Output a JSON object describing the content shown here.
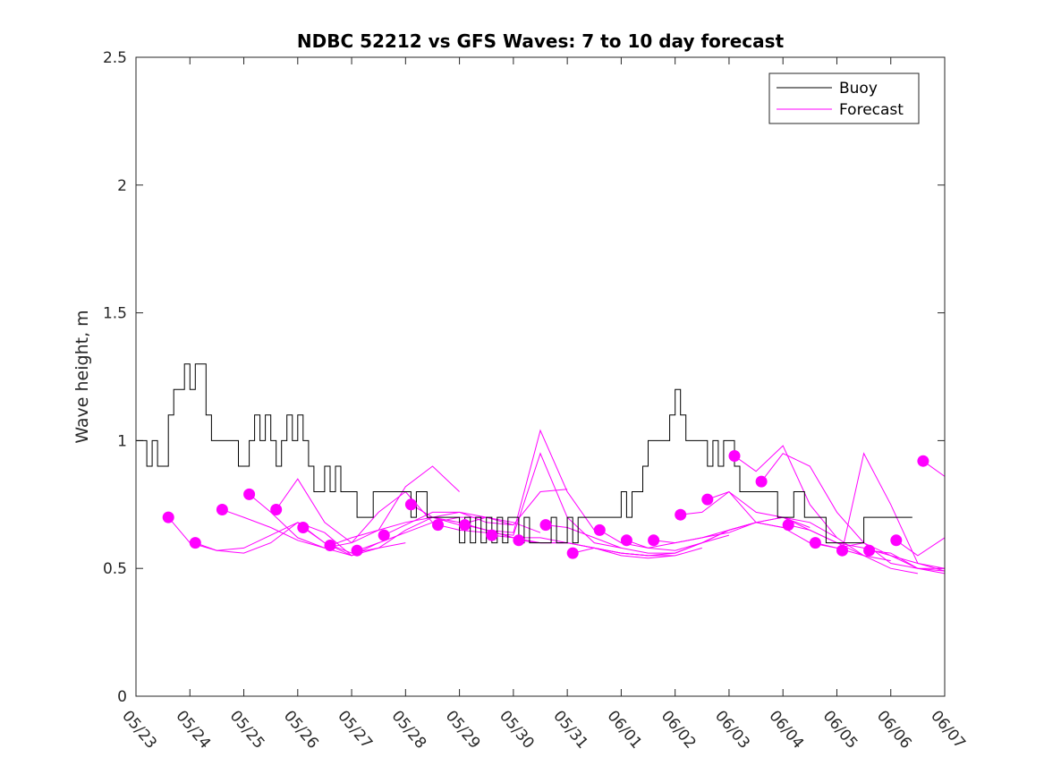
{
  "chart_data": {
    "type": "line",
    "title": "NDBC 52212 vs GFS Waves: 7 to 10 day forecast",
    "xlabel": "",
    "ylabel": "Wave height, m",
    "xlim": [
      "05/23",
      "06/07"
    ],
    "ylim": [
      0,
      2.5
    ],
    "x_tick_labels": [
      "05/23",
      "05/24",
      "05/25",
      "05/26",
      "05/27",
      "05/28",
      "05/29",
      "05/30",
      "05/31",
      "06/01",
      "06/02",
      "06/03",
      "06/04",
      "06/05",
      "06/06",
      "06/07"
    ],
    "y_tick_labels": [
      "0",
      "0.5",
      "1",
      "1.5",
      "2",
      "2.5"
    ],
    "y_ticks": [
      0,
      0.5,
      1,
      1.5,
      2,
      2.5
    ],
    "grid": false,
    "legend_position": "top-right",
    "colors": {
      "buoy": "#000000",
      "forecast": "#ff00ff"
    },
    "buoy": {
      "name": "Buoy",
      "x_days": [
        0,
        0.1,
        0.2,
        0.3,
        0.4,
        0.5,
        0.6,
        0.7,
        0.8,
        0.9,
        1.0,
        1.1,
        1.2,
        1.3,
        1.4,
        1.5,
        1.6,
        1.7,
        1.8,
        1.9,
        2.0,
        2.1,
        2.2,
        2.3,
        2.4,
        2.5,
        2.6,
        2.7,
        2.8,
        2.9,
        3.0,
        3.1,
        3.2,
        3.3,
        3.4,
        3.5,
        3.6,
        3.7,
        3.8,
        3.9,
        4.0,
        4.1,
        4.2,
        4.3,
        4.4,
        4.5,
        4.6,
        4.7,
        4.8,
        4.9,
        5.0,
        5.1,
        5.2,
        5.3,
        5.4,
        5.5,
        5.6,
        5.7,
        5.8,
        5.9,
        6.0,
        6.1,
        6.2,
        6.3,
        6.4,
        6.5,
        6.6,
        6.7,
        6.8,
        6.9,
        7.0,
        7.1,
        7.2,
        7.3,
        7.4,
        7.5,
        7.6,
        7.7,
        7.8,
        7.9,
        8.0,
        8.1,
        8.2,
        8.3,
        8.4,
        8.5,
        8.6,
        8.7,
        8.8,
        8.9,
        9.0,
        9.1,
        9.2,
        9.3,
        9.4,
        9.5,
        9.6,
        9.7,
        9.8,
        9.9,
        10.0,
        10.1,
        10.2,
        10.3,
        10.4,
        10.5,
        10.6,
        10.7,
        10.8,
        10.9,
        11.0,
        11.1,
        11.2,
        11.3,
        11.4,
        11.5,
        11.6,
        11.7,
        11.8,
        11.9,
        12.0,
        12.1,
        12.2,
        12.3,
        12.4,
        12.5,
        12.6,
        12.7,
        12.8,
        12.9,
        13.0,
        13.1,
        13.2,
        13.3,
        13.4,
        13.5,
        13.6,
        13.7,
        13.8,
        13.9,
        14.0,
        14.1,
        14.2,
        14.3
      ],
      "values": [
        1.0,
        1.0,
        0.9,
        1.0,
        0.9,
        0.9,
        1.1,
        1.2,
        1.2,
        1.3,
        1.2,
        1.3,
        1.3,
        1.1,
        1.0,
        1.0,
        1.0,
        1.0,
        1.0,
        0.9,
        0.9,
        1.0,
        1.1,
        1.0,
        1.1,
        1.0,
        0.9,
        1.0,
        1.1,
        1.0,
        1.1,
        1.0,
        0.9,
        0.8,
        0.8,
        0.9,
        0.8,
        0.9,
        0.8,
        0.8,
        0.8,
        0.7,
        0.7,
        0.7,
        0.8,
        0.8,
        0.8,
        0.8,
        0.8,
        0.8,
        0.8,
        0.7,
        0.8,
        0.8,
        0.7,
        0.7,
        0.7,
        0.7,
        0.7,
        0.7,
        0.6,
        0.7,
        0.6,
        0.7,
        0.6,
        0.7,
        0.6,
        0.7,
        0.6,
        0.7,
        0.7,
        0.6,
        0.7,
        0.6,
        0.6,
        0.6,
        0.6,
        0.7,
        0.6,
        0.6,
        0.7,
        0.6,
        0.7,
        0.7,
        0.7,
        0.7,
        0.7,
        0.7,
        0.7,
        0.7,
        0.8,
        0.7,
        0.8,
        0.8,
        0.9,
        1.0,
        1.0,
        1.0,
        1.0,
        1.1,
        1.2,
        1.1,
        1.0,
        1.0,
        1.0,
        1.0,
        0.9,
        1.0,
        0.9,
        1.0,
        1.0,
        0.9,
        0.8,
        0.8,
        0.8,
        0.8,
        0.8,
        0.8,
        0.8,
        0.7,
        0.7,
        0.7,
        0.8,
        0.8,
        0.7,
        0.7,
        0.7,
        0.7,
        0.6,
        0.6,
        0.6,
        0.6,
        0.6,
        0.6,
        0.6,
        0.7,
        0.7,
        0.7,
        0.7,
        0.7,
        0.7,
        0.7,
        0.7,
        0.7
      ]
    },
    "forecast_runs": [
      {
        "x_days": [
          0.6,
          1.0,
          1.5,
          2.0,
          2.5,
          3.0,
          3.5,
          4.0
        ],
        "values": [
          0.7,
          0.6,
          0.57,
          0.56,
          0.6,
          0.68,
          0.64,
          0.55
        ]
      },
      {
        "x_days": [
          1.1,
          1.5,
          2.0,
          2.5,
          3.0,
          3.5,
          4.0,
          4.5
        ],
        "values": [
          0.6,
          0.57,
          0.58,
          0.63,
          0.68,
          0.6,
          0.55,
          0.6
        ]
      },
      {
        "x_days": [
          1.6,
          2.0,
          2.5,
          3.0,
          3.5,
          4.0,
          4.5,
          5.0
        ],
        "values": [
          0.73,
          0.7,
          0.66,
          0.61,
          0.58,
          0.55,
          0.58,
          0.6
        ]
      },
      {
        "x_days": [
          2.1,
          2.5,
          3.0,
          3.5,
          4.0,
          4.5,
          5.0,
          5.5
        ],
        "values": [
          0.79,
          0.72,
          0.62,
          0.58,
          0.6,
          0.72,
          0.8,
          0.68
        ]
      },
      {
        "x_days": [
          2.6,
          3.0,
          3.5,
          4.0,
          4.5,
          5.0,
          5.5,
          6.0
        ],
        "values": [
          0.73,
          0.85,
          0.68,
          0.6,
          0.65,
          0.82,
          0.9,
          0.8
        ]
      },
      {
        "x_days": [
          3.1,
          3.5,
          4.0,
          4.5,
          5.0,
          5.5,
          6.0,
          6.5
        ],
        "values": [
          0.66,
          0.6,
          0.56,
          0.58,
          0.65,
          0.7,
          0.67,
          0.7
        ]
      },
      {
        "x_days": [
          3.6,
          4.0,
          4.5,
          5.0,
          5.5,
          6.0,
          6.5,
          7.0
        ],
        "values": [
          0.59,
          0.62,
          0.65,
          0.68,
          0.7,
          0.72,
          0.68,
          0.67
        ]
      },
      {
        "x_days": [
          4.1,
          4.5,
          5.0,
          5.5,
          6.0,
          6.5,
          7.0,
          7.5
        ],
        "values": [
          0.57,
          0.6,
          0.64,
          0.68,
          0.7,
          0.7,
          0.68,
          0.64
        ]
      },
      {
        "x_days": [
          4.6,
          5.0,
          5.5,
          6.0,
          6.5,
          7.0,
          7.5,
          8.0
        ],
        "values": [
          0.63,
          0.67,
          0.72,
          0.72,
          0.7,
          0.67,
          0.8,
          0.81
        ]
      },
      {
        "x_days": [
          5.1,
          5.5,
          6.0,
          6.5,
          7.0,
          7.5,
          8.0,
          8.5
        ],
        "values": [
          0.75,
          0.7,
          0.68,
          0.65,
          0.64,
          1.04,
          0.8,
          0.65
        ]
      },
      {
        "x_days": [
          5.6,
          6.0,
          6.5,
          7.0,
          7.5,
          8.0,
          8.5,
          9.0
        ],
        "values": [
          0.67,
          0.65,
          0.64,
          0.63,
          0.95,
          0.7,
          0.6,
          0.58
        ]
      },
      {
        "x_days": [
          6.1,
          6.5,
          7.0,
          7.5,
          8.0,
          8.5,
          9.0,
          9.5
        ],
        "values": [
          0.67,
          0.65,
          0.62,
          0.62,
          0.6,
          0.58,
          0.56,
          0.55
        ]
      },
      {
        "x_days": [
          6.6,
          7.0,
          7.5,
          8.0,
          8.5,
          9.0,
          9.5,
          10.0
        ],
        "values": [
          0.63,
          0.62,
          0.6,
          0.6,
          0.58,
          0.56,
          0.55,
          0.55
        ]
      },
      {
        "x_days": [
          7.1,
          7.5,
          8.0,
          8.5,
          9.0,
          9.5,
          10.0,
          10.5
        ],
        "values": [
          0.61,
          0.6,
          0.6,
          0.58,
          0.55,
          0.54,
          0.55,
          0.58
        ]
      },
      {
        "x_days": [
          7.6,
          8.0,
          8.5,
          9.0,
          9.5,
          10.0,
          10.5,
          11.0
        ],
        "values": [
          0.67,
          0.66,
          0.62,
          0.58,
          0.56,
          0.56,
          0.6,
          0.63
        ]
      },
      {
        "x_days": [
          8.1,
          8.5,
          9.0,
          9.5,
          10.0,
          10.5,
          11.0,
          11.5
        ],
        "values": [
          0.56,
          0.58,
          0.56,
          0.55,
          0.56,
          0.6,
          0.65,
          0.68
        ]
      },
      {
        "x_days": [
          8.6,
          9.0,
          9.5,
          10.0,
          10.5,
          11.0,
          11.5,
          12.0
        ],
        "values": [
          0.65,
          0.6,
          0.58,
          0.6,
          0.62,
          0.64,
          0.68,
          0.66
        ]
      },
      {
        "x_days": [
          9.1,
          9.5,
          10.0,
          10.5,
          11.0,
          11.5,
          12.0,
          12.5
        ],
        "values": [
          0.61,
          0.58,
          0.57,
          0.6,
          0.65,
          0.68,
          0.7,
          0.66
        ]
      },
      {
        "x_days": [
          9.6,
          10.0,
          10.5,
          11.0,
          11.5,
          12.0,
          12.5,
          13.0
        ],
        "values": [
          0.61,
          0.6,
          0.62,
          0.65,
          0.68,
          0.7,
          0.68,
          0.62
        ]
      },
      {
        "x_days": [
          10.1,
          10.5,
          11.0,
          11.5,
          12.0,
          12.5,
          13.0,
          13.5
        ],
        "values": [
          0.71,
          0.72,
          0.8,
          0.68,
          0.66,
          0.6,
          0.58,
          0.55
        ]
      },
      {
        "x_days": [
          10.6,
          11.0,
          11.5,
          12.0,
          12.5,
          13.0,
          13.5,
          14.0
        ],
        "values": [
          0.77,
          0.8,
          0.72,
          0.7,
          0.65,
          0.6,
          0.55,
          0.53
        ]
      },
      {
        "x_days": [
          11.1,
          11.5,
          12.0,
          12.5,
          13.0,
          13.5,
          14.0,
          14.5
        ],
        "values": [
          0.94,
          0.88,
          0.98,
          0.75,
          0.62,
          0.55,
          0.5,
          0.48
        ]
      },
      {
        "x_days": [
          11.6,
          12.0,
          12.5,
          13.0,
          13.5,
          14.0,
          14.5,
          15.0
        ],
        "values": [
          0.84,
          0.95,
          0.9,
          0.72,
          0.6,
          0.52,
          0.5,
          0.48
        ]
      },
      {
        "x_days": [
          12.1,
          12.5,
          13.0,
          13.5,
          14.0,
          14.5,
          15.0
        ],
        "values": [
          0.67,
          0.65,
          0.6,
          0.58,
          0.55,
          0.5,
          0.5
        ]
      },
      {
        "x_days": [
          12.6,
          13.0,
          13.5,
          14.0,
          14.5,
          15.0
        ],
        "values": [
          0.6,
          0.58,
          0.6,
          0.55,
          0.52,
          0.5
        ]
      },
      {
        "x_days": [
          13.1,
          13.5,
          14.0,
          14.5,
          15.0
        ],
        "values": [
          0.57,
          0.95,
          0.75,
          0.52,
          0.49
        ]
      },
      {
        "x_days": [
          13.6,
          14.0,
          14.5,
          15.0
        ],
        "values": [
          0.57,
          0.56,
          0.5,
          0.49
        ]
      },
      {
        "x_days": [
          14.1,
          14.5,
          15.0
        ],
        "values": [
          0.61,
          0.55,
          0.62
        ]
      },
      {
        "x_days": [
          14.6,
          15.0
        ],
        "values": [
          0.92,
          0.86
        ]
      }
    ],
    "forecast_markers": {
      "x_days": [
        0.6,
        1.1,
        1.6,
        2.1,
        2.6,
        3.1,
        3.6,
        4.1,
        4.6,
        5.1,
        5.6,
        6.1,
        6.6,
        7.1,
        7.6,
        8.1,
        8.6,
        9.1,
        9.6,
        10.1,
        10.6,
        11.1,
        11.6,
        12.1,
        12.6,
        13.1,
        13.6,
        14.1,
        14.6
      ],
      "values": [
        0.7,
        0.6,
        0.73,
        0.79,
        0.73,
        0.66,
        0.59,
        0.57,
        0.63,
        0.75,
        0.67,
        0.67,
        0.63,
        0.61,
        0.67,
        0.56,
        0.65,
        0.61,
        0.61,
        0.71,
        0.77,
        0.94,
        0.84,
        0.67,
        0.6,
        0.57,
        0.57,
        0.61,
        0.92
      ]
    }
  },
  "legend": {
    "items": [
      {
        "label": "Buoy",
        "color": "#000000"
      },
      {
        "label": "Forecast",
        "color": "#ff00ff"
      }
    ]
  }
}
